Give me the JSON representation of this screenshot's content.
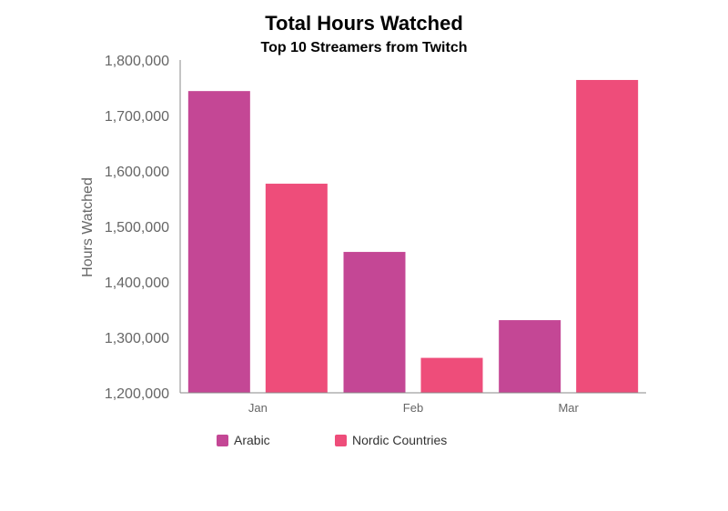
{
  "chart_data": {
    "type": "bar",
    "title": "Total Hours Watched",
    "subtitle": "Top 10 Streamers from Twitch",
    "ylabel": "Hours Watched",
    "xlabel": "",
    "categories": [
      "Jan",
      "Feb",
      "Mar"
    ],
    "series": [
      {
        "name": "Arabic",
        "color": "#c44795",
        "values": [
          1744000,
          1454000,
          1331000
        ]
      },
      {
        "name": "Nordic Countries",
        "color": "#ee4d7a",
        "values": [
          1577000,
          1263000,
          1764000
        ]
      }
    ],
    "ylim": [
      1200000,
      1800000
    ],
    "yticks": [
      1200000,
      1300000,
      1400000,
      1500000,
      1600000,
      1700000,
      1800000
    ],
    "ytick_labels": [
      "1,200,000",
      "1,300,000",
      "1,400,000",
      "1,500,000",
      "1,600,000",
      "1,700,000",
      "1,800,000"
    ],
    "grid": false,
    "legend_position": "bottom-left"
  }
}
